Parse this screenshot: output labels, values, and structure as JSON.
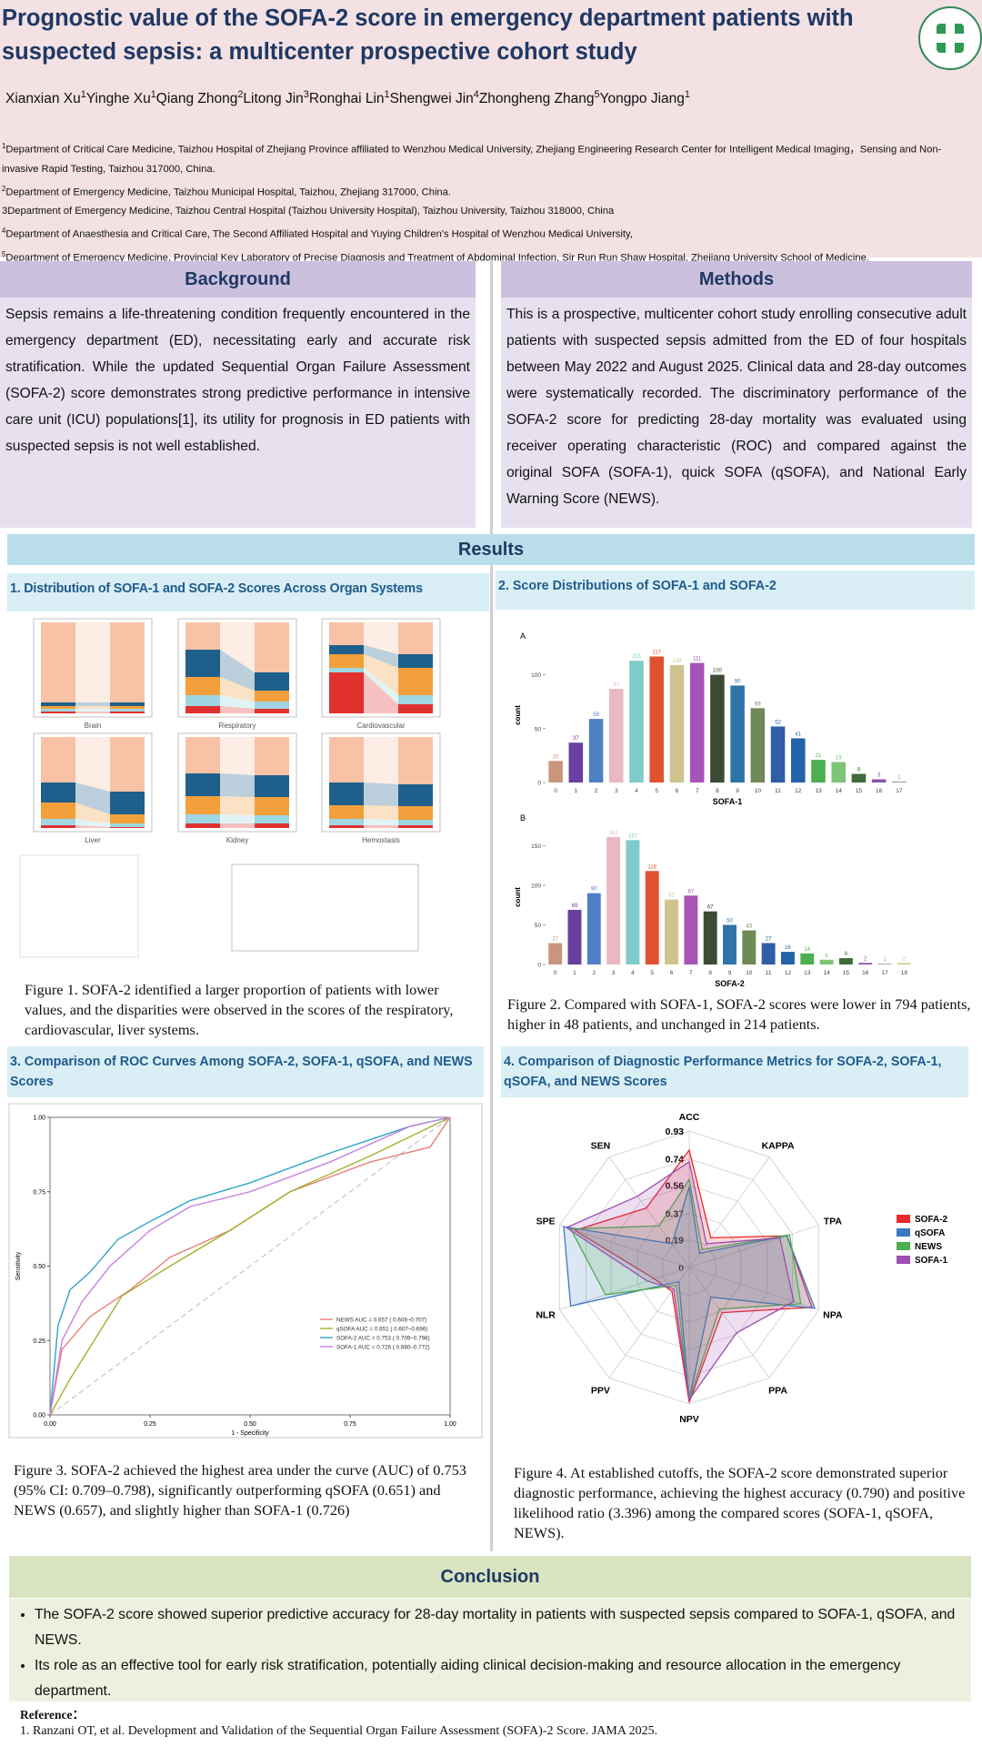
{
  "header": {
    "title": "Prognostic value of the SOFA-2 score in emergency department patients with suspected sepsis: a multicenter prospective cohort study",
    "authors": [
      {
        "name": "Xianxian Xu",
        "aff": "1"
      },
      {
        "name": "Yinghe Xu",
        "aff": "1"
      },
      {
        "name": "Qiang Zhong",
        "aff": "2"
      },
      {
        "name": "Litong Jin",
        "aff": "3"
      },
      {
        "name": "Ronghai Lin",
        "aff": "1"
      },
      {
        "name": "Shengwei Jin",
        "aff": "4"
      },
      {
        "name": "Zhongheng Zhang",
        "aff": "5"
      },
      {
        "name": "Yongpo Jiang",
        "aff": "1"
      }
    ],
    "affiliations": [
      {
        "sup": "1",
        "text": "Department of Critical Care Medicine, Taizhou Hospital of Zhejiang Province affiliated to Wenzhou Medical University, Zhejiang Engineering Research Center for Intelligent   Medical Imaging，Sensing and Non-invasive Rapid Testing, Taizhou 317000, China."
      },
      {
        "sup": "2",
        "text": "Department of Emergency Medicine, Taizhou Municipal Hospital, Taizhou, Zhejiang 317000, China."
      },
      {
        "text": "3Department of Emergency Medicine, Taizhou Central Hospital (Taizhou University Hospital), Taizhou University, Taizhou 318000, China"
      },
      {
        "sup": "4",
        "text": "Department of Anaesthesia and Critical Care, The Second Affiliated Hospital and Yuying Children's Hospital of Wenzhou Medical University,"
      },
      {
        "sup": "5",
        "text": "Department of Emergency Medicine, Provincial Key Laboratory of Precise Diagnosis and Treatment of Abdominal Infection, Sir Run Run Shaw Hospital, Zhejiang University School of Medicine."
      }
    ]
  },
  "background": {
    "heading": "Background",
    "text": "Sepsis remains a life-threatening condition frequently encountered in the emergency department (ED), necessitating early and accurate risk stratification. While the updated Sequential Organ Failure Assessment (SOFA-2) score demonstrates strong predictive performance in intensive care unit (ICU) populations[1], its utility for prognosis in ED patients with suspected sepsis is not well established."
  },
  "methods": {
    "heading": "Methods",
    "text": "This is a prospective, multicenter cohort study enrolling consecutive adult patients with suspected sepsis admitted from the ED of four hospitals between May 2022 and August 2025. Clinical data and 28-day outcomes were systematically recorded. The discriminatory performance of the SOFA-2 score for predicting 28-day mortality was evaluated using receiver operating characteristic  (ROC) and compared against the original SOFA (SOFA-1), quick SOFA (qSOFA), and National Early Warning Score (NEWS)."
  },
  "results": {
    "heading": "Results",
    "sections": [
      {
        "heading": "1. Distribution of SOFA-1 and SOFA-2 Scores Across Organ Systems",
        "caption": "Figure 1. SOFA-2 identified a larger proportion of patients with lower values, and the disparities were observed in the scores of the respiratory, cardiovascular, liver systems."
      },
      {
        "heading": "2. Score Distributions of SOFA-1 and SOFA-2",
        "caption": "Figure 2. Compared with SOFA-1, SOFA-2 scores were lower in 794 patients, higher in 48 patients, and unchanged in 214 patients."
      },
      {
        "heading": "3. Comparison of ROC Curves Among SOFA-2, SOFA-1, qSOFA, and NEWS Scores",
        "caption": "Figure 3. SOFA-2 achieved the highest area under the curve (AUC) of 0.753 (95% CI: 0.709–0.798), significantly outperforming qSOFA (0.651) and NEWS (0.657), and slightly higher than SOFA-1 (0.726)"
      },
      {
        "heading": "4. Comparison of Diagnostic Performance Metrics for SOFA-2, SOFA-1, qSOFA, and NEWS Scores",
        "caption": "Figure 4. At established cutoffs, the SOFA-2 score demonstrated superior diagnostic performance, achieving the highest accuracy (0.790) and positive likelihood ratio (3.396) among the compared scores (SOFA-1, qSOFA, NEWS)."
      }
    ]
  },
  "figure1": {
    "type": "stacked-bar",
    "ylim": [
      0,
      100
    ],
    "colors": [
      "#f9c2a6",
      "#1f5f8b",
      "#f3a03c",
      "#9ed6e2",
      "#e0312f"
    ],
    "panels": [
      {
        "name": "Brain",
        "sofa1": [
          88,
          4,
          3,
          3,
          2
        ],
        "sofa2": [
          88,
          4,
          3,
          3,
          2
        ]
      },
      {
        "name": "Respiratory",
        "sofa1": [
          30,
          30,
          20,
          12,
          8
        ],
        "sofa2": [
          55,
          20,
          12,
          8,
          5
        ]
      },
      {
        "name": "Cardiovascular",
        "sofa1": [
          25,
          10,
          15,
          5,
          45
        ],
        "sofa2": [
          35,
          15,
          30,
          10,
          10
        ]
      },
      {
        "name": "Liver",
        "sofa1": [
          50,
          22,
          18,
          7,
          3
        ],
        "sofa2": [
          60,
          25,
          10,
          4,
          1
        ]
      },
      {
        "name": "Kidney",
        "sofa1": [
          40,
          25,
          20,
          10,
          5
        ],
        "sofa2": [
          42,
          24,
          20,
          9,
          5
        ]
      },
      {
        "name": "Hemostasis",
        "sofa1": [
          50,
          25,
          15,
          7,
          3
        ],
        "sofa2": [
          52,
          24,
          15,
          6,
          3
        ]
      }
    ]
  },
  "figure2": {
    "type": "bar",
    "charts": [
      {
        "panel": "A",
        "xlabel": "SOFA-1",
        "ylabel": "count",
        "ylim": [
          0,
          125
        ],
        "yticks": [
          0,
          50,
          100
        ],
        "categories": [
          0,
          1,
          2,
          3,
          4,
          5,
          6,
          7,
          8,
          9,
          10,
          11,
          12,
          13,
          14,
          15,
          16,
          17
        ],
        "values": [
          20,
          37,
          59,
          87,
          113,
          117,
          109,
          111,
          100,
          90,
          69,
          52,
          41,
          21,
          19,
          8,
          3,
          1
        ],
        "colors": [
          "#c9957c",
          "#6b3fa0",
          "#4f7fc4",
          "#eab8c2",
          "#7fcbc9",
          "#e0522f",
          "#cfc48e",
          "#a654b5",
          "#3d4a34",
          "#2f73a8",
          "#6f8a56",
          "#2d5ea6",
          "#2363a8",
          "#4caf50",
          "#7cc576",
          "#3f6b3a",
          "#8a55a8",
          "#9e9e9e"
        ]
      },
      {
        "panel": "B",
        "xlabel": "SOFA-2",
        "ylabel": "count",
        "ylim": [
          0,
          170
        ],
        "yticks": [
          0,
          50,
          100,
          150
        ],
        "categories": [
          0,
          1,
          2,
          3,
          4,
          5,
          6,
          7,
          8,
          9,
          10,
          11,
          12,
          13,
          14,
          15,
          16,
          17,
          18
        ],
        "values": [
          27,
          69,
          90,
          161,
          157,
          118,
          82,
          87,
          67,
          50,
          43,
          27,
          16,
          14,
          6,
          8,
          2,
          1,
          2
        ],
        "colors": [
          "#c9957c",
          "#6b3fa0",
          "#4f7fc4",
          "#eab8c2",
          "#7fcbc9",
          "#e0522f",
          "#cfc48e",
          "#a654b5",
          "#3d4a34",
          "#2f73a8",
          "#6f8a56",
          "#2d5ea6",
          "#2363a8",
          "#4caf50",
          "#7cc576",
          "#3f6b3a",
          "#8a55a8",
          "#9e9e9e",
          "#c8d48a"
        ]
      }
    ]
  },
  "figure3": {
    "type": "line",
    "xlabel": "1 - Specificity",
    "ylabel": "Sensitivity",
    "xlim": [
      0,
      1
    ],
    "ylim": [
      0,
      1
    ],
    "xticks": [
      {
        "value": 0,
        "label": "0.00"
      },
      {
        "value": 0.25,
        "label": "0.25"
      },
      {
        "value": 0.5,
        "label": "0.50"
      },
      {
        "value": 0.75,
        "label": "0.75"
      },
      {
        "value": 1,
        "label": "1.00"
      }
    ],
    "yticks": [
      {
        "value": 0,
        "label": "0.00"
      },
      {
        "value": 0.25,
        "label": "0.25"
      },
      {
        "value": 0.5,
        "label": "0.50"
      },
      {
        "value": 0.75,
        "label": "0.75"
      },
      {
        "value": 1,
        "label": "1.00"
      }
    ],
    "series": [
      {
        "name": "NEWS AUC = 0.657 ( 0.608–0.707)",
        "color": "#e8807a",
        "x": [
          0,
          0.03,
          0.1,
          0.2,
          0.3,
          0.45,
          0.6,
          0.8,
          0.95,
          1
        ],
        "y": [
          0,
          0.22,
          0.33,
          0.42,
          0.53,
          0.62,
          0.75,
          0.85,
          0.9,
          1
        ]
      },
      {
        "name": "qSOFA AUC = 0.651 ( 0.607–0.696)",
        "color": "#a3b22c",
        "x": [
          0,
          0.05,
          0.18,
          0.3,
          0.45,
          0.6,
          0.8,
          1
        ],
        "y": [
          0,
          0.12,
          0.4,
          0.5,
          0.62,
          0.75,
          0.87,
          1
        ]
      },
      {
        "name": "SOFA-2 AUC = 0.753 ( 0.709–0.798)",
        "color": "#2fa4c8",
        "x": [
          0,
          0.02,
          0.05,
          0.1,
          0.17,
          0.25,
          0.35,
          0.5,
          0.7,
          0.9,
          1
        ],
        "y": [
          0,
          0.3,
          0.42,
          0.48,
          0.59,
          0.65,
          0.72,
          0.78,
          0.88,
          0.97,
          1
        ]
      },
      {
        "name": "SOFA-1 AUC = 0.726 ( 0.680–0.772)",
        "color": "#c77fe0",
        "x": [
          0,
          0.03,
          0.08,
          0.15,
          0.25,
          0.35,
          0.5,
          0.7,
          0.9,
          1
        ],
        "y": [
          0,
          0.25,
          0.38,
          0.5,
          0.62,
          0.7,
          0.75,
          0.85,
          0.97,
          1
        ]
      }
    ]
  },
  "figure4": {
    "type": "radar",
    "axes": [
      "ACC",
      "KAPPA",
      "TPA",
      "NPA",
      "PPA",
      "NPV",
      "PPV",
      "NLR",
      "SPE",
      "SEN"
    ],
    "rlim": [
      0,
      0.93
    ],
    "rticks": [
      0,
      0.19,
      0.37,
      0.56,
      0.74,
      0.93
    ],
    "series": [
      {
        "name": "SOFA-2",
        "color": "#e8282b",
        "values": [
          0.8,
          0.25,
          0.7,
          0.88,
          0.38,
          0.92,
          0.2,
          0.25,
          0.82,
          0.5
        ]
      },
      {
        "name": "qSOFA",
        "color": "#3b78c0",
        "values": [
          0.55,
          0.12,
          0.7,
          0.9,
          0.25,
          0.9,
          0.12,
          0.85,
          0.9,
          0.2
        ]
      },
      {
        "name": "NEWS",
        "color": "#4cae4c",
        "values": [
          0.6,
          0.15,
          0.72,
          0.8,
          0.35,
          0.9,
          0.15,
          0.6,
          0.85,
          0.35
        ]
      },
      {
        "name": "SOFA-1",
        "color": "#9b4fb0",
        "values": [
          0.72,
          0.2,
          0.65,
          0.75,
          0.55,
          0.9,
          0.18,
          0.3,
          0.88,
          0.6
        ]
      }
    ]
  },
  "conclusion": {
    "heading": "Conclusion",
    "bullets": [
      "The SOFA-2 score showed superior predictive accuracy for 28-day mortality in patients with suspected sepsis compared to SOFA-1, qSOFA, and NEWS.",
      "Its role as an effective tool for early risk stratification, potentially aiding clinical decision-making and resource allocation in the emergency department."
    ]
  },
  "reference": {
    "heading": "Reference：",
    "items": [
      "1. Ranzani OT, et al. Development and Validation of the Sequential Organ Failure Assessment (SOFA)-2 Score. JAMA 2025."
    ]
  }
}
